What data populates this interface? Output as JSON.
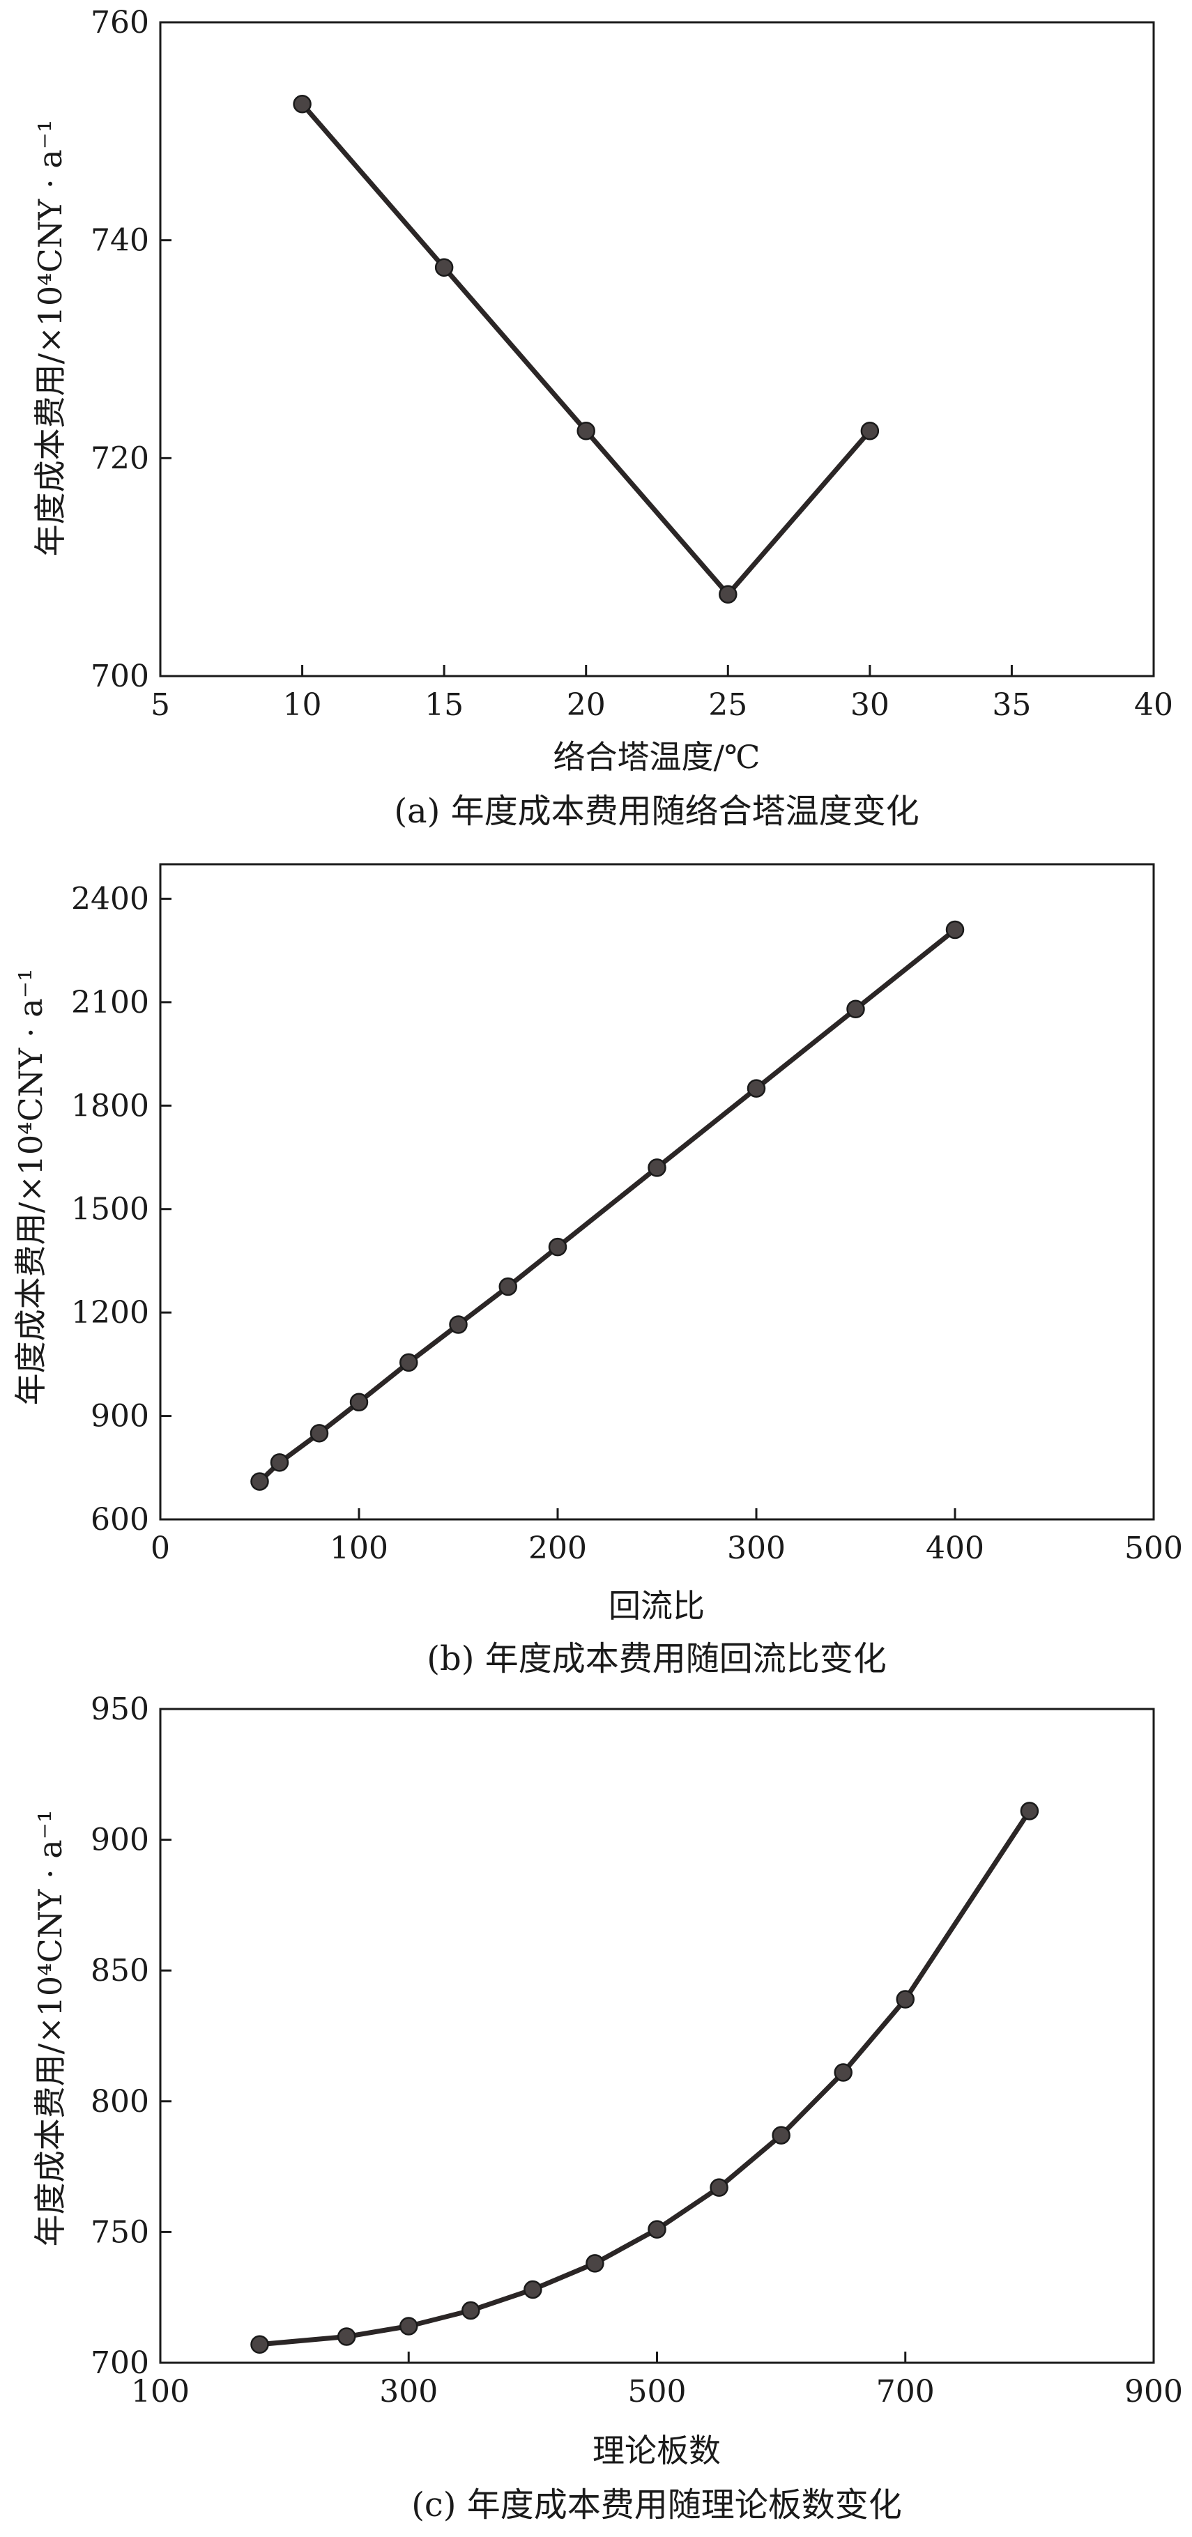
{
  "chart_data": [
    {
      "type": "line",
      "caption": "(a) 年度成本费用随络合塔温度变化",
      "xlabel": "络合塔温度/℃",
      "ylabel": "年度成本费用/×10⁴CNY · a⁻¹",
      "xlim": [
        5,
        40
      ],
      "ylim": [
        700,
        760
      ],
      "xticks": [
        "5",
        "10",
        "15",
        "20",
        "25",
        "30",
        "35",
        "40"
      ],
      "yticks": [
        "700",
        "720",
        "740",
        "760"
      ],
      "x": [
        10,
        15,
        20,
        25,
        30
      ],
      "series": [
        {
          "values": [
            752.5,
            737.5,
            722.5,
            707.5,
            722.5
          ]
        }
      ],
      "grid": false
    },
    {
      "type": "line",
      "caption": "(b) 年度成本费用随回流比变化",
      "xlabel": "回流比",
      "ylabel": "年度成本费用/×10⁴CNY · a⁻¹",
      "xlim": [
        0,
        500
      ],
      "ylim": [
        600,
        2500
      ],
      "xticks": [
        "0",
        "100",
        "200",
        "300",
        "400",
        "500"
      ],
      "yticks": [
        "600",
        "900",
        "1200",
        "1500",
        "1800",
        "2100",
        "2400"
      ],
      "x": [
        50,
        60,
        80,
        100,
        125,
        150,
        175,
        200,
        250,
        300,
        350,
        400
      ],
      "series": [
        {
          "values": [
            710,
            765,
            850,
            940,
            1055,
            1165,
            1275,
            1390,
            1620,
            1850,
            2080,
            2310
          ]
        }
      ],
      "grid": false
    },
    {
      "type": "line",
      "caption": "(c) 年度成本费用随理论板数变化",
      "xlabel": "理论板数",
      "ylabel": "年度成本费用/×10⁴CNY · a⁻¹",
      "xlim": [
        100,
        900
      ],
      "ylim": [
        700,
        950
      ],
      "xticks": [
        "100",
        "300",
        "500",
        "700",
        "900"
      ],
      "yticks": [
        "700",
        "750",
        "800",
        "850",
        "900",
        "950"
      ],
      "x": [
        180,
        250,
        300,
        350,
        400,
        450,
        500,
        550,
        600,
        650,
        700,
        800
      ],
      "series": [
        {
          "values": [
            707,
            710,
            714,
            720,
            728,
            738,
            751,
            767,
            787,
            811,
            839,
            911
          ]
        }
      ],
      "grid": false
    }
  ]
}
